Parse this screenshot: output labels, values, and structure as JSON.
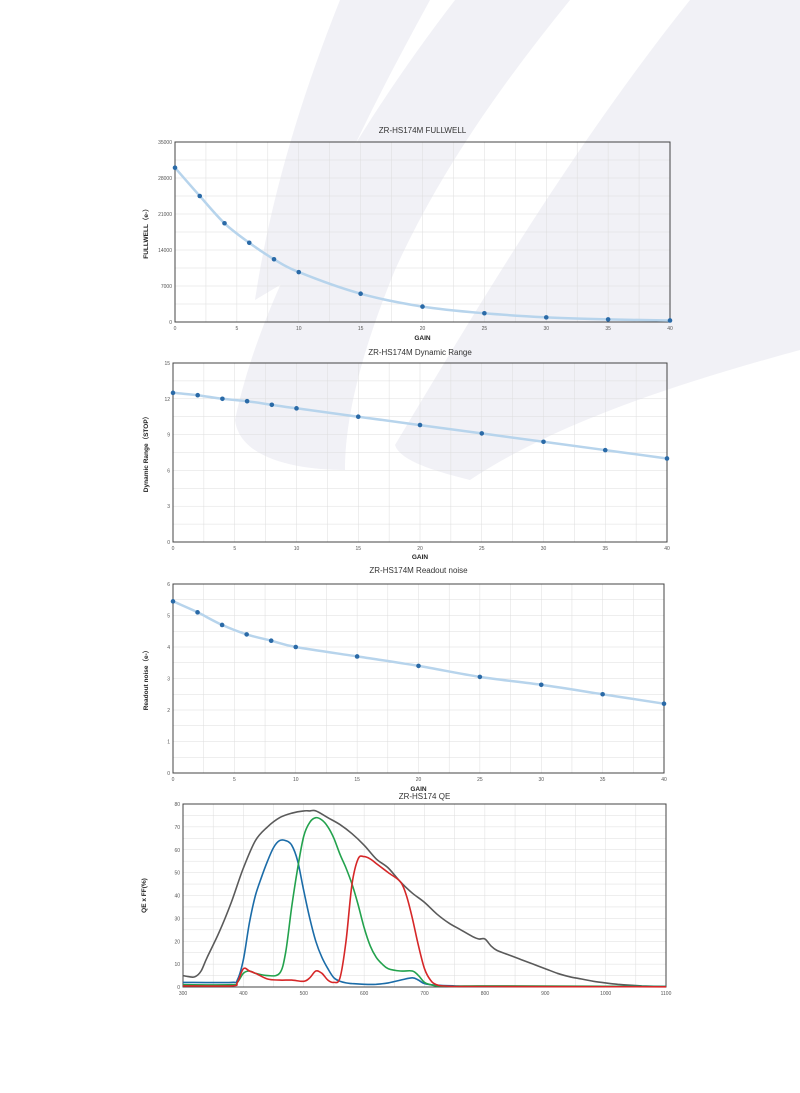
{
  "colors": {
    "fit_line": "#b7d4ec",
    "point": "#2a6aa7",
    "frame": "#444444",
    "grid": "#dddddd",
    "watermark": "#f1f1f6",
    "qe_mono": "#5a5a5a",
    "qe_blue": "#1b6ca8",
    "qe_green": "#23a24d",
    "qe_red": "#d62728"
  },
  "chart_data": [
    {
      "type": "scatter",
      "title": "ZR-HS174M FULLWELL",
      "xlabel": "GAIN",
      "ylabel": "FULLWELL（e-）",
      "xlim": [
        0,
        40
      ],
      "ylim": [
        0,
        35000
      ],
      "xticks": [
        0,
        5,
        10,
        15,
        20,
        25,
        30,
        35,
        40
      ],
      "yticks": [
        0,
        7000,
        14000,
        21000,
        28000,
        35000
      ],
      "grid": true,
      "trendline": true,
      "x": [
        0,
        2,
        4,
        6,
        8,
        10,
        15,
        20,
        25,
        30,
        35,
        40
      ],
      "y": [
        30000,
        24500,
        19200,
        15400,
        12200,
        9700,
        5500,
        3000,
        1700,
        900,
        500,
        300
      ]
    },
    {
      "type": "scatter",
      "title": "ZR-HS174M Dynamic Range",
      "xlabel": "GAIN",
      "ylabel": "Dynamic Range（STOP）",
      "xlim": [
        0,
        40
      ],
      "ylim": [
        0,
        15
      ],
      "xticks": [
        0,
        5,
        10,
        15,
        20,
        25,
        30,
        35,
        40
      ],
      "yticks": [
        0,
        3,
        6,
        9,
        12,
        15
      ],
      "grid": true,
      "trendline": true,
      "x": [
        0,
        2,
        4,
        6,
        8,
        10,
        15,
        20,
        25,
        30,
        35,
        40
      ],
      "y": [
        12.5,
        12.3,
        12.0,
        11.8,
        11.5,
        11.2,
        10.5,
        9.8,
        9.1,
        8.4,
        7.7,
        7.0
      ]
    },
    {
      "type": "scatter",
      "title": "ZR-HS174M Readout noise",
      "xlabel": "GAIN",
      "ylabel": "Readout noise（e-）",
      "xlim": [
        0,
        40
      ],
      "ylim": [
        0,
        6
      ],
      "xticks": [
        0,
        5,
        10,
        15,
        20,
        25,
        30,
        35,
        40
      ],
      "yticks": [
        0,
        1,
        2,
        3,
        4,
        5,
        6
      ],
      "grid": true,
      "trendline": true,
      "x": [
        0,
        2,
        4,
        6,
        8,
        10,
        15,
        20,
        25,
        30,
        35,
        40
      ],
      "y": [
        5.45,
        5.1,
        4.7,
        4.4,
        4.2,
        4.0,
        3.7,
        3.4,
        3.05,
        2.8,
        2.5,
        2.2
      ]
    },
    {
      "type": "line",
      "title": "ZR-HS174 QE",
      "xlabel": "",
      "ylabel": "QE x FF(%)",
      "xlim": [
        300,
        1100
      ],
      "ylim": [
        0,
        80
      ],
      "xticks": [
        300,
        400,
        500,
        600,
        700,
        800,
        900,
        1000,
        1100
      ],
      "yticks": [
        0,
        10,
        20,
        30,
        40,
        50,
        60,
        70,
        80
      ],
      "grid": true,
      "series": [
        {
          "color": "#5a5a5a",
          "x": [
            300,
            310,
            320,
            330,
            340,
            360,
            380,
            400,
            420,
            440,
            460,
            480,
            500,
            510,
            520,
            540,
            560,
            580,
            600,
            620,
            640,
            660,
            680,
            700,
            720,
            740,
            760,
            780,
            790,
            800,
            810,
            820,
            840,
            860,
            880,
            900,
            920,
            940,
            960,
            980,
            1000,
            1020,
            1040,
            1060,
            1080,
            1100
          ],
          "y": [
            5,
            4.5,
            4.5,
            7,
            13,
            24,
            37,
            52,
            64,
            70,
            74,
            76,
            77,
            77,
            77,
            74,
            71,
            67,
            62,
            56,
            52,
            46,
            41,
            37,
            32,
            28,
            25,
            22,
            21,
            21,
            18,
            16,
            14,
            12,
            10,
            8,
            6,
            4.5,
            3.5,
            2.5,
            1.8,
            1.2,
            0.8,
            0.5,
            0.3,
            0.2
          ]
        },
        {
          "color": "#1b6ca8",
          "x": [
            300,
            380,
            390,
            400,
            410,
            420,
            430,
            440,
            450,
            460,
            470,
            480,
            490,
            500,
            510,
            520,
            530,
            540,
            550,
            560,
            570,
            580,
            600,
            620,
            640,
            660,
            680,
            690,
            700,
            720,
            750,
            800,
            1100
          ],
          "y": [
            2,
            2,
            3,
            12,
            28,
            40,
            48,
            55,
            61,
            64,
            64,
            62,
            55,
            42,
            30,
            20,
            13,
            8,
            4,
            2.5,
            1.8,
            1.5,
            1.2,
            1.2,
            1.8,
            3,
            4,
            3,
            1.5,
            0.8,
            0.5,
            0.3,
            0.2
          ]
        },
        {
          "color": "#23a24d",
          "x": [
            300,
            380,
            390,
            400,
            410,
            420,
            440,
            460,
            470,
            480,
            490,
            500,
            510,
            520,
            530,
            540,
            550,
            560,
            570,
            580,
            590,
            600,
            610,
            620,
            630,
            640,
            660,
            680,
            690,
            700,
            710,
            720,
            750,
            800,
            1100
          ],
          "y": [
            1,
            1,
            2,
            6,
            7,
            6,
            5,
            6,
            15,
            35,
            52,
            66,
            72,
            74,
            73,
            70,
            65,
            58,
            52,
            45,
            36,
            26,
            18,
            13,
            10,
            8,
            7,
            7,
            5,
            2,
            1,
            0.5,
            0.3,
            0.5,
            0.2
          ]
        },
        {
          "color": "#d62728",
          "x": [
            300,
            380,
            390,
            400,
            410,
            420,
            440,
            460,
            480,
            500,
            510,
            520,
            530,
            540,
            550,
            560,
            570,
            580,
            590,
            600,
            610,
            620,
            640,
            660,
            670,
            680,
            690,
            700,
            710,
            720,
            740,
            800,
            1100
          ],
          "y": [
            0.5,
            0.5,
            2,
            8,
            7,
            6,
            3.5,
            3,
            3,
            2.5,
            4,
            7,
            6,
            3,
            2,
            4,
            20,
            45,
            56,
            57,
            56,
            54,
            50,
            46,
            40,
            30,
            18,
            8,
            3,
            1,
            0.3,
            0.2,
            0.1
          ]
        }
      ]
    }
  ]
}
